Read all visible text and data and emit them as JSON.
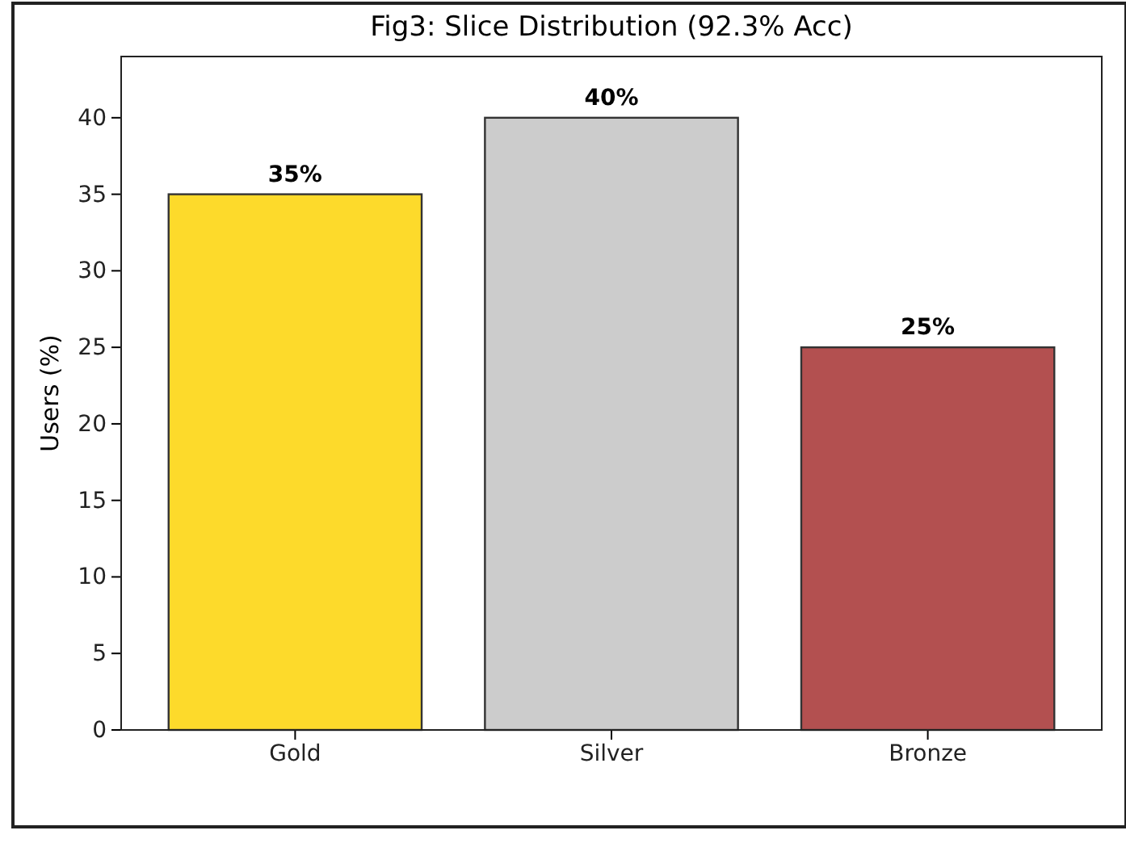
{
  "chart_data": {
    "type": "bar",
    "title": "Fig3: Slice Distribution (92.3% Acc)",
    "ylabel": "Users (%)",
    "categories": [
      "Gold",
      "Silver",
      "Bronze"
    ],
    "values": [
      35,
      40,
      25
    ],
    "colors": [
      "#fdda2b",
      "#cccccc",
      "#b35050"
    ],
    "value_labels": [
      "35%",
      "40%",
      "25%"
    ],
    "ylim": [
      0,
      44
    ],
    "yticks": [
      0,
      5,
      10,
      15,
      20,
      25,
      30,
      35,
      40
    ],
    "grid": false
  }
}
